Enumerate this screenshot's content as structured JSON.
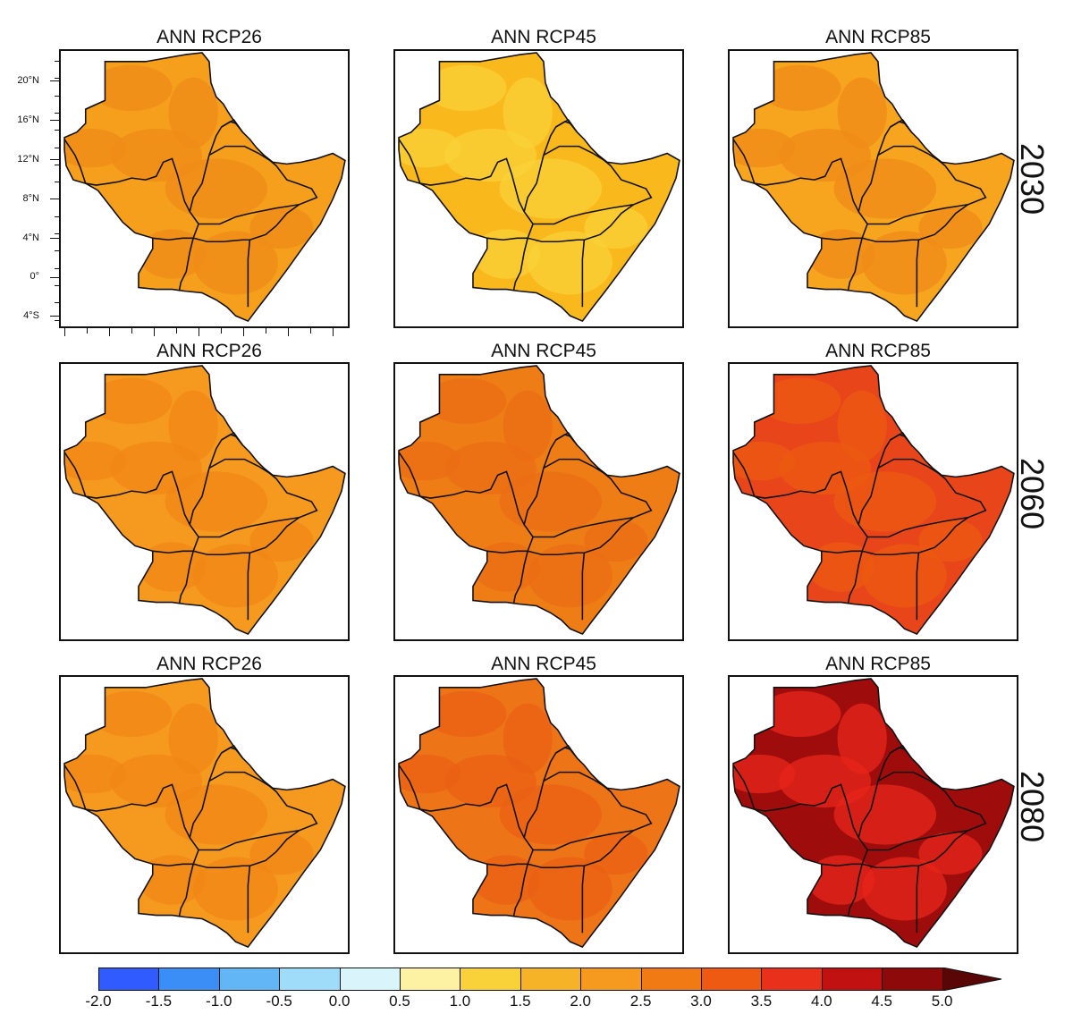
{
  "titles": {
    "r1c1": "ANN RCP26",
    "r1c2": "ANN RCP45",
    "r1c3": "ANN RCP85",
    "r2c1": "ANN RCP26",
    "r2c2": "ANN RCP45",
    "r2c3": "ANN RCP85",
    "r3c1": "ANN RCP26",
    "r3c2": "ANN RCP45",
    "r3c3": "ANN RCP85"
  },
  "periods": [
    "2030",
    "2060",
    "2080"
  ],
  "lat_ticks": [
    "20°N",
    "16°N",
    "12°N",
    "8°N",
    "4°N",
    "0°",
    "4°S"
  ],
  "colorbar": {
    "labels": [
      "-2.0",
      "-1.5",
      "-1.0",
      "-0.5",
      "0.0",
      "0.5",
      "1.0",
      "1.5",
      "2.0",
      "2.5",
      "3.0",
      "3.5",
      "4.0",
      "4.5",
      "5.0"
    ],
    "colors": [
      "#2f5bff",
      "#3a8ef5",
      "#62b6f5",
      "#9fdcfa",
      "#d9f4fb",
      "#fdf1a3",
      "#f9d23a",
      "#f7b327",
      "#f59a1f",
      "#f27a14",
      "#ee5a12",
      "#e8301a",
      "#c21111",
      "#8e0a0a"
    ],
    "overflow_color": "#5a0606"
  },
  "panel_colors": {
    "r1c1": {
      "base": "#f59f1c",
      "accent": "#ef8b18"
    },
    "r1c2": {
      "base": "#f9b81b",
      "accent": "#f9d23a"
    },
    "r1c3": {
      "base": "#f7a41e",
      "accent": "#ef8b18"
    },
    "r2c1": {
      "base": "#f59a1f",
      "accent": "#f08516"
    },
    "r2c2": {
      "base": "#ef7d16",
      "accent": "#eb6e14"
    },
    "r2c3": {
      "base": "#e8461a",
      "accent": "#ee5a12"
    },
    "r3c1": {
      "base": "#f59a1f",
      "accent": "#f08516"
    },
    "r3c2": {
      "base": "#ee7418",
      "accent": "#e96013"
    },
    "r3c3": {
      "base": "#9e0c0c",
      "accent": "#e8251a"
    }
  },
  "map_overlay_color": "#111111"
}
